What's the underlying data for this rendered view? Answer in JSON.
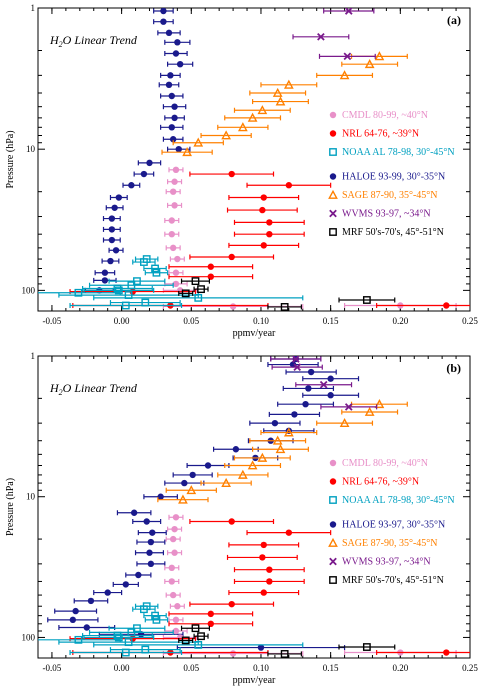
{
  "chart_data": [
    {
      "type": "scatter",
      "panel_label": "(a)",
      "title_parts": {
        "pre": "H",
        "sub": "2",
        "post": "O Linear Trend"
      },
      "xlabel": "ppmv/year",
      "ylabel": "Pressure (hPa)",
      "xlim": [
        -0.06,
        0.25
      ],
      "ylim": [
        1,
        140
      ],
      "y_scale": "log",
      "xticks": [
        -0.05,
        0.0,
        0.05,
        0.1,
        0.15,
        0.2,
        0.25
      ],
      "xtick_labels": [
        "-0.05",
        "0.00",
        "0.05",
        "0.10",
        "0.15",
        "0.20",
        "0.25"
      ],
      "yticks": [
        1,
        10,
        100
      ],
      "ytick_labels": [
        "1",
        "10",
        "100"
      ],
      "legend_position": "right",
      "series": [
        {
          "name": "HALOE 93-99, 30°-35°N",
          "color": "#1a1a8c",
          "marker": "circle",
          "points": [
            [
              0.03,
              1.05,
              0.007
            ],
            [
              0.03,
              1.25,
              0.007
            ],
            [
              0.034,
              1.5,
              0.008
            ],
            [
              0.04,
              1.75,
              0.009
            ],
            [
              0.039,
              2.1,
              0.008
            ],
            [
              0.042,
              2.5,
              0.009
            ],
            [
              0.035,
              3,
              0.007
            ],
            [
              0.034,
              3.5,
              0.007
            ],
            [
              0.036,
              4.2,
              0.008
            ],
            [
              0.038,
              5,
              0.008
            ],
            [
              0.038,
              6,
              0.007
            ],
            [
              0.036,
              7,
              0.008
            ],
            [
              0.037,
              8.5,
              0.007
            ],
            [
              0.041,
              10,
              0.008
            ],
            [
              0.02,
              12.5,
              0.008
            ],
            [
              0.016,
              15,
              0.007
            ],
            [
              0.007,
              18,
              0.006
            ],
            [
              -0.002,
              22,
              0.006
            ],
            [
              -0.005,
              26,
              0.006
            ],
            [
              -0.007,
              31,
              0.006
            ],
            [
              -0.007,
              37,
              0.006
            ],
            [
              -0.007,
              44,
              0.006
            ],
            [
              -0.004,
              52,
              0.005
            ],
            [
              -0.008,
              62,
              0.006
            ],
            [
              -0.012,
              75,
              0.007
            ],
            [
              -0.012,
              85,
              0.008
            ],
            [
              -0.016,
              100,
              0.01
            ]
          ]
        },
        {
          "name": "SAGE 87-90, 35°-45°N",
          "color": "#ff8000",
          "marker": "triangle",
          "points": [
            [
              0.185,
              2.2,
              0.02
            ],
            [
              0.178,
              2.5,
              0.02
            ],
            [
              0.16,
              3,
              0.02
            ],
            [
              0.12,
              3.5,
              0.02
            ],
            [
              0.112,
              4,
              0.02
            ],
            [
              0.114,
              4.6,
              0.02
            ],
            [
              0.101,
              5.3,
              0.02
            ],
            [
              0.094,
              6,
              0.02
            ],
            [
              0.087,
              7,
              0.018
            ],
            [
              0.075,
              8,
              0.018
            ],
            [
              0.055,
              9,
              0.018
            ],
            [
              0.047,
              10.5,
              0.018
            ]
          ]
        },
        {
          "name": "WVMS 93-97, ~34°N",
          "color": "#7a1a8c",
          "marker": "x",
          "points": [
            [
              0.163,
              1.05,
              0.018
            ],
            [
              0.143,
              1.6,
              0.02
            ],
            [
              0.162,
              2.2,
              0.02
            ]
          ]
        },
        {
          "name": "CMDL 80-99, ~40°N",
          "color": "#e890c8",
          "marker": "circle",
          "points": [
            [
              0.039,
              14,
              0.005
            ],
            [
              0.038,
              17,
              0.005
            ],
            [
              0.037,
              20,
              0.005
            ],
            [
              0.038,
              25,
              0.005
            ],
            [
              0.036,
              32,
              0.005
            ],
            [
              0.036,
              40,
              0.005
            ],
            [
              0.037,
              50,
              0.005
            ],
            [
              0.04,
              60,
              0.005
            ],
            [
              0.039,
              75,
              0.005
            ],
            [
              0.039,
              90,
              0.008
            ],
            [
              0.042,
              100,
              0.012
            ],
            [
              0.08,
              130,
              0.05
            ],
            [
              0.2,
              128,
              0.04
            ]
          ]
        },
        {
          "name": "NRL 64-76, ~39°N",
          "color": "#ff0000",
          "marker": "circle",
          "points": [
            [
              0.079,
              15,
              0.03
            ],
            [
              0.12,
              18,
              0.03
            ],
            [
              0.102,
              22,
              0.025
            ],
            [
              0.101,
              27,
              0.025
            ],
            [
              0.106,
              33,
              0.025
            ],
            [
              0.106,
              40,
              0.025
            ],
            [
              0.102,
              48,
              0.025
            ],
            [
              0.079,
              58,
              0.03
            ],
            [
              0.064,
              68,
              0.03
            ],
            [
              0.064,
              80,
              0.03
            ],
            [
              0.008,
              102,
              0.045
            ],
            [
              0.233,
              128,
              0.05
            ],
            [
              0.035,
              128,
              0.07
            ]
          ]
        },
        {
          "name": "NOAA AL 78-98, 30°-45°N",
          "color": "#00a0c0",
          "marker": "square",
          "points": [
            [
              0.018,
              60,
              0.008
            ],
            [
              0.016,
              63,
              0.008
            ],
            [
              0.024,
              70,
              0.008
            ],
            [
              0.025,
              75,
              0.008
            ],
            [
              0.011,
              86,
              0.02
            ],
            [
              0.007,
              92,
              0.03
            ],
            [
              -0.003,
              97,
              0.025
            ],
            [
              -0.002,
              100,
              0.025
            ],
            [
              -0.031,
              104,
              0.03
            ],
            [
              0.005,
              108,
              0.05
            ],
            [
              0.055,
              113,
              0.075
            ],
            [
              0.017,
              122,
              0.025
            ],
            [
              0.003,
              128,
              0.04
            ]
          ]
        },
        {
          "name": "MRF 50's-70's, 45°-51°N",
          "color": "#000000",
          "marker": "square",
          "points": [
            [
              0.053,
              86,
              0.01
            ],
            [
              0.057,
              98,
              0.005
            ],
            [
              0.046,
              105,
              0.005
            ],
            [
              0.176,
              117,
              0.02
            ],
            [
              0.117,
              131,
              0.012
            ]
          ]
        }
      ]
    },
    {
      "type": "scatter",
      "panel_label": "(b)",
      "title_parts": {
        "pre": "H",
        "sub": "2",
        "post": "O Linear Trend"
      },
      "xlabel": "ppmv/year",
      "ylabel": "Pressure (hPa)",
      "xlim": [
        -0.06,
        0.25
      ],
      "ylim": [
        1,
        140
      ],
      "y_scale": "log",
      "xticks": [
        -0.05,
        0.0,
        0.05,
        0.1,
        0.15,
        0.2,
        0.25
      ],
      "xtick_labels": [
        "-0.05",
        "0.00",
        "0.05",
        "0.10",
        "0.15",
        "0.20",
        "0.25"
      ],
      "yticks": [
        1,
        10,
        100
      ],
      "ytick_labels": [
        "1",
        "10",
        "100"
      ],
      "legend_position": "right",
      "series": [
        {
          "name": "HALOE 93-97, 30°-35°N",
          "color": "#1a1a8c",
          "marker": "circle",
          "points": [
            [
              0.125,
              1.05,
              0.018
            ],
            [
              0.123,
              1.15,
              0.018
            ],
            [
              0.136,
              1.3,
              0.018
            ],
            [
              0.15,
              1.45,
              0.02
            ],
            [
              0.134,
              1.7,
              0.018
            ],
            [
              0.15,
              1.9,
              0.02
            ],
            [
              0.132,
              2.2,
              0.02
            ],
            [
              0.124,
              2.6,
              0.018
            ],
            [
              0.11,
              3,
              0.018
            ],
            [
              0.12,
              3.4,
              0.018
            ],
            [
              0.107,
              4,
              0.016
            ],
            [
              0.082,
              4.6,
              0.016
            ],
            [
              0.096,
              5.3,
              0.016
            ],
            [
              0.062,
              6,
              0.015
            ],
            [
              0.051,
              7,
              0.014
            ],
            [
              0.045,
              8,
              0.014
            ],
            [
              0.028,
              10,
              0.012
            ],
            [
              0.009,
              13,
              0.012
            ],
            [
              0.018,
              15,
              0.01
            ],
            [
              0.022,
              18,
              0.01
            ],
            [
              0.021,
              21,
              0.01
            ],
            [
              0.02,
              25,
              0.01
            ],
            [
              0.021,
              30,
              0.01
            ],
            [
              0.012,
              36,
              0.009
            ],
            [
              0.003,
              42,
              0.009
            ],
            [
              -0.01,
              48,
              0.01
            ],
            [
              -0.022,
              55,
              0.012
            ],
            [
              -0.033,
              65,
              0.015
            ],
            [
              -0.035,
              75,
              0.018
            ],
            [
              -0.025,
              85,
              0.02
            ],
            [
              0.014,
              95,
              0.03
            ],
            [
              0.1,
              118,
              0.06
            ]
          ]
        },
        {
          "name": "SAGE 87-90, 35°-45°N",
          "color": "#ff8000",
          "marker": "triangle",
          "points": [
            [
              0.185,
              2.2,
              0.02
            ],
            [
              0.178,
              2.5,
              0.02
            ],
            [
              0.16,
              3,
              0.02
            ],
            [
              0.12,
              3.5,
              0.02
            ],
            [
              0.112,
              4,
              0.02
            ],
            [
              0.114,
              4.6,
              0.02
            ],
            [
              0.101,
              5.3,
              0.02
            ],
            [
              0.094,
              6,
              0.02
            ],
            [
              0.087,
              7,
              0.018
            ],
            [
              0.075,
              8,
              0.018
            ],
            [
              0.05,
              9,
              0.018
            ],
            [
              0.044,
              10.5,
              0.018
            ]
          ]
        },
        {
          "name": "WVMS 93-97, ~34°N",
          "color": "#7a1a8c",
          "marker": "x",
          "points": [
            [
              0.125,
              1.05,
              0.018
            ],
            [
              0.126,
              1.2,
              0.018
            ],
            [
              0.145,
              1.6,
              0.02
            ],
            [
              0.163,
              2.3,
              0.02
            ]
          ]
        },
        {
          "name": "CMDL 80-99, ~40°N",
          "color": "#e890c8",
          "marker": "circle",
          "points": [
            [
              0.039,
              14,
              0.005
            ],
            [
              0.038,
              17,
              0.005
            ],
            [
              0.037,
              20,
              0.005
            ],
            [
              0.038,
              25,
              0.005
            ],
            [
              0.036,
              32,
              0.005
            ],
            [
              0.036,
              40,
              0.005
            ],
            [
              0.037,
              50,
              0.005
            ],
            [
              0.04,
              60,
              0.005
            ],
            [
              0.039,
              75,
              0.005
            ],
            [
              0.039,
              90,
              0.008
            ],
            [
              0.042,
              100,
              0.012
            ],
            [
              0.08,
              130,
              0.05
            ],
            [
              0.2,
              128,
              0.04
            ]
          ]
        },
        {
          "name": "NRL 64-76, ~39°N",
          "color": "#ff0000",
          "marker": "circle",
          "points": [
            [
              0.079,
              15,
              0.03
            ],
            [
              0.12,
              18,
              0.03
            ],
            [
              0.102,
              22,
              0.025
            ],
            [
              0.101,
              27,
              0.025
            ],
            [
              0.106,
              33,
              0.025
            ],
            [
              0.106,
              40,
              0.025
            ],
            [
              0.102,
              48,
              0.025
            ],
            [
              0.079,
              58,
              0.03
            ],
            [
              0.064,
              68,
              0.03
            ],
            [
              0.064,
              80,
              0.03
            ],
            [
              0.008,
              102,
              0.045
            ],
            [
              0.233,
              128,
              0.05
            ],
            [
              0.035,
              128,
              0.07
            ]
          ]
        },
        {
          "name": "NOAA AL 78-98, 30°-45°N",
          "color": "#00a0c0",
          "marker": "square",
          "points": [
            [
              0.018,
              60,
              0.008
            ],
            [
              0.016,
              63,
              0.008
            ],
            [
              0.024,
              70,
              0.008
            ],
            [
              0.025,
              75,
              0.008
            ],
            [
              0.011,
              86,
              0.02
            ],
            [
              0.007,
              92,
              0.03
            ],
            [
              -0.003,
              97,
              0.025
            ],
            [
              -0.002,
              100,
              0.025
            ],
            [
              -0.031,
              104,
              0.03
            ],
            [
              0.005,
              108,
              0.05
            ],
            [
              0.055,
              113,
              0.075
            ],
            [
              0.017,
              122,
              0.025
            ],
            [
              0.003,
              128,
              0.04
            ]
          ]
        },
        {
          "name": "MRF 50's-70's, 45°-51°N",
          "color": "#000000",
          "marker": "square",
          "points": [
            [
              0.053,
              86,
              0.01
            ],
            [
              0.057,
              98,
              0.005
            ],
            [
              0.046,
              105,
              0.005
            ],
            [
              0.176,
              117,
              0.02
            ],
            [
              0.117,
              131,
              0.012
            ]
          ]
        }
      ]
    }
  ]
}
